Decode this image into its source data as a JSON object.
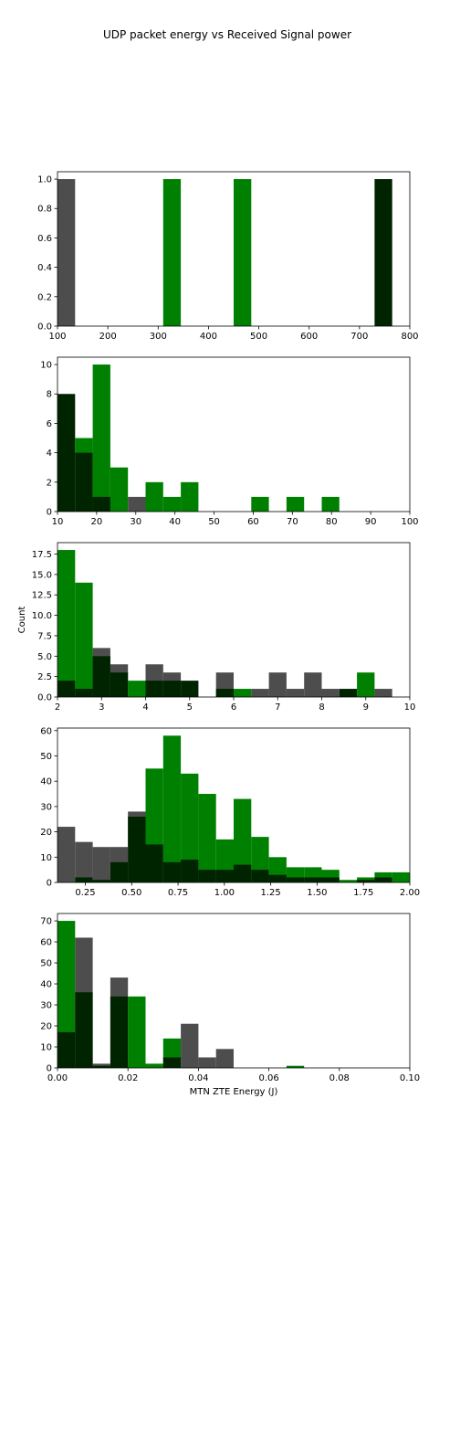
{
  "figure": {
    "title": "UDP packet energy vs Received Signal power"
  },
  "colors": {
    "gray": "#4d4d4d",
    "green": "#008000",
    "dark": "#002400"
  },
  "chart_data": [
    {
      "type": "bar",
      "xlim": [
        100,
        800
      ],
      "ylim": [
        0,
        1.05
      ],
      "xticks": [
        100,
        200,
        300,
        400,
        500,
        600,
        700,
        800
      ],
      "yticks": [
        0.0,
        0.2,
        0.4,
        0.6,
        0.8,
        1.0
      ],
      "xtick_labels": [
        "100",
        "200",
        "300",
        "400",
        "500",
        "600",
        "700",
        "800"
      ],
      "ytick_labels": [
        "0.0",
        "0.2",
        "0.4",
        "0.6",
        "0.8",
        "1.0"
      ],
      "xlabel": "",
      "ylabel": "",
      "bars": [
        {
          "x0": 100,
          "x1": 135,
          "value": 1,
          "color": "gray"
        },
        {
          "x0": 310,
          "x1": 345,
          "value": 1,
          "color": "green"
        },
        {
          "x0": 450,
          "x1": 485,
          "value": 1,
          "color": "green"
        },
        {
          "x0": 730,
          "x1": 765,
          "value": 1,
          "color": "dark"
        }
      ]
    },
    {
      "type": "bar",
      "xlim": [
        10,
        100
      ],
      "ylim": [
        0,
        10.5
      ],
      "xticks": [
        10,
        20,
        30,
        40,
        50,
        60,
        70,
        80,
        90,
        100
      ],
      "yticks": [
        0,
        2,
        4,
        6,
        8,
        10
      ],
      "xtick_labels": [
        "10",
        "20",
        "30",
        "40",
        "50",
        "60",
        "70",
        "80",
        "90",
        "100"
      ],
      "ytick_labels": [
        "0",
        "2",
        "4",
        "6",
        "8",
        "10"
      ],
      "xlabel": "",
      "ylabel": "",
      "bars": [
        {
          "x0": 10,
          "x1": 14.5,
          "value": 8,
          "color": "dark"
        },
        {
          "x0": 14.5,
          "x1": 19,
          "value": 5,
          "color": "green"
        },
        {
          "x0": 14.5,
          "x1": 19,
          "value": 4,
          "color": "dark"
        },
        {
          "x0": 19,
          "x1": 23.5,
          "value": 10,
          "color": "green"
        },
        {
          "x0": 19,
          "x1": 23.5,
          "value": 1,
          "color": "dark"
        },
        {
          "x0": 23.5,
          "x1": 28,
          "value": 3,
          "color": "green"
        },
        {
          "x0": 28,
          "x1": 32.5,
          "value": 1,
          "color": "gray"
        },
        {
          "x0": 32.5,
          "x1": 37,
          "value": 2,
          "color": "green"
        },
        {
          "x0": 37,
          "x1": 41.5,
          "value": 1,
          "color": "green"
        },
        {
          "x0": 41.5,
          "x1": 46,
          "value": 2,
          "color": "green"
        },
        {
          "x0": 59.5,
          "x1": 64,
          "value": 1,
          "color": "green"
        },
        {
          "x0": 68.5,
          "x1": 73,
          "value": 1,
          "color": "green"
        },
        {
          "x0": 77.5,
          "x1": 82,
          "value": 1,
          "color": "green"
        }
      ]
    },
    {
      "type": "bar",
      "xlim": [
        2,
        10
      ],
      "ylim": [
        0,
        18.9
      ],
      "xticks": [
        2,
        3,
        4,
        5,
        6,
        7,
        8,
        9,
        10
      ],
      "yticks": [
        0,
        2.5,
        5.0,
        7.5,
        10.0,
        12.5,
        15.0,
        17.5
      ],
      "xtick_labels": [
        "2",
        "3",
        "4",
        "5",
        "6",
        "7",
        "8",
        "9",
        "10"
      ],
      "ytick_labels": [
        "0.0",
        "2.5",
        "5.0",
        "7.5",
        "10.0",
        "12.5",
        "15.0",
        "17.5"
      ],
      "xlabel": "",
      "ylabel": "Count",
      "bars": [
        {
          "x0": 2.0,
          "x1": 2.4,
          "value": 18,
          "color": "green"
        },
        {
          "x0": 2.0,
          "x1": 2.4,
          "value": 2,
          "color": "dark"
        },
        {
          "x0": 2.4,
          "x1": 2.8,
          "value": 14,
          "color": "green"
        },
        {
          "x0": 2.4,
          "x1": 2.8,
          "value": 1,
          "color": "dark"
        },
        {
          "x0": 2.8,
          "x1": 3.2,
          "value": 6,
          "color": "gray"
        },
        {
          "x0": 2.8,
          "x1": 3.2,
          "value": 5,
          "color": "dark"
        },
        {
          "x0": 3.2,
          "x1": 3.6,
          "value": 4,
          "color": "gray"
        },
        {
          "x0": 3.2,
          "x1": 3.6,
          "value": 3,
          "color": "dark"
        },
        {
          "x0": 3.6,
          "x1": 4.0,
          "value": 2,
          "color": "green"
        },
        {
          "x0": 4.0,
          "x1": 4.4,
          "value": 4,
          "color": "gray"
        },
        {
          "x0": 4.0,
          "x1": 4.4,
          "value": 2,
          "color": "dark"
        },
        {
          "x0": 4.4,
          "x1": 4.8,
          "value": 3,
          "color": "gray"
        },
        {
          "x0": 4.4,
          "x1": 4.8,
          "value": 2,
          "color": "dark"
        },
        {
          "x0": 4.8,
          "x1": 5.2,
          "value": 2,
          "color": "dark"
        },
        {
          "x0": 5.6,
          "x1": 6.0,
          "value": 3,
          "color": "gray"
        },
        {
          "x0": 5.6,
          "x1": 6.0,
          "value": 1,
          "color": "dark"
        },
        {
          "x0": 6.0,
          "x1": 6.4,
          "value": 1,
          "color": "green"
        },
        {
          "x0": 6.4,
          "x1": 6.8,
          "value": 1,
          "color": "gray"
        },
        {
          "x0": 6.8,
          "x1": 7.2,
          "value": 3,
          "color": "gray"
        },
        {
          "x0": 7.2,
          "x1": 7.6,
          "value": 1,
          "color": "gray"
        },
        {
          "x0": 7.6,
          "x1": 8.0,
          "value": 3,
          "color": "gray"
        },
        {
          "x0": 8.0,
          "x1": 8.4,
          "value": 1,
          "color": "gray"
        },
        {
          "x0": 8.4,
          "x1": 8.8,
          "value": 1,
          "color": "dark"
        },
        {
          "x0": 8.8,
          "x1": 9.2,
          "value": 3,
          "color": "green"
        },
        {
          "x0": 9.2,
          "x1": 9.6,
          "value": 1,
          "color": "gray"
        }
      ]
    },
    {
      "type": "bar",
      "xlim": [
        0.1,
        2.0
      ],
      "ylim": [
        0,
        61
      ],
      "xticks": [
        0.25,
        0.5,
        0.75,
        1.0,
        1.25,
        1.5,
        1.75,
        2.0
      ],
      "yticks": [
        0,
        10,
        20,
        30,
        40,
        50,
        60
      ],
      "xtick_labels": [
        "0.25",
        "0.50",
        "0.75",
        "1.00",
        "1.25",
        "1.50",
        "1.75",
        "2.00"
      ],
      "ytick_labels": [
        "0",
        "10",
        "20",
        "30",
        "40",
        "50",
        "60"
      ],
      "xlabel": "",
      "ylabel": "",
      "bars": [
        {
          "x0": 0.1,
          "x1": 0.195,
          "value": 22,
          "color": "gray"
        },
        {
          "x0": 0.195,
          "x1": 0.29,
          "value": 16,
          "color": "gray"
        },
        {
          "x0": 0.195,
          "x1": 0.29,
          "value": 2,
          "color": "dark"
        },
        {
          "x0": 0.29,
          "x1": 0.385,
          "value": 14,
          "color": "gray"
        },
        {
          "x0": 0.29,
          "x1": 0.385,
          "value": 1,
          "color": "dark"
        },
        {
          "x0": 0.385,
          "x1": 0.48,
          "value": 14,
          "color": "gray"
        },
        {
          "x0": 0.385,
          "x1": 0.48,
          "value": 8,
          "color": "dark"
        },
        {
          "x0": 0.48,
          "x1": 0.575,
          "value": 28,
          "color": "gray"
        },
        {
          "x0": 0.48,
          "x1": 0.575,
          "value": 26,
          "color": "dark"
        },
        {
          "x0": 0.575,
          "x1": 0.67,
          "value": 45,
          "color": "green"
        },
        {
          "x0": 0.575,
          "x1": 0.67,
          "value": 15,
          "color": "dark"
        },
        {
          "x0": 0.67,
          "x1": 0.765,
          "value": 58,
          "color": "green"
        },
        {
          "x0": 0.67,
          "x1": 0.765,
          "value": 8,
          "color": "dark"
        },
        {
          "x0": 0.765,
          "x1": 0.86,
          "value": 43,
          "color": "green"
        },
        {
          "x0": 0.765,
          "x1": 0.86,
          "value": 9,
          "color": "dark"
        },
        {
          "x0": 0.86,
          "x1": 0.955,
          "value": 35,
          "color": "green"
        },
        {
          "x0": 0.86,
          "x1": 0.955,
          "value": 5,
          "color": "dark"
        },
        {
          "x0": 0.955,
          "x1": 1.05,
          "value": 17,
          "color": "green"
        },
        {
          "x0": 0.955,
          "x1": 1.05,
          "value": 5,
          "color": "dark"
        },
        {
          "x0": 1.05,
          "x1": 1.145,
          "value": 33,
          "color": "green"
        },
        {
          "x0": 1.05,
          "x1": 1.145,
          "value": 7,
          "color": "dark"
        },
        {
          "x0": 1.145,
          "x1": 1.24,
          "value": 18,
          "color": "green"
        },
        {
          "x0": 1.145,
          "x1": 1.24,
          "value": 5,
          "color": "dark"
        },
        {
          "x0": 1.24,
          "x1": 1.335,
          "value": 10,
          "color": "green"
        },
        {
          "x0": 1.24,
          "x1": 1.335,
          "value": 3,
          "color": "dark"
        },
        {
          "x0": 1.335,
          "x1": 1.43,
          "value": 6,
          "color": "green"
        },
        {
          "x0": 1.335,
          "x1": 1.43,
          "value": 2,
          "color": "dark"
        },
        {
          "x0": 1.43,
          "x1": 1.525,
          "value": 6,
          "color": "green"
        },
        {
          "x0": 1.43,
          "x1": 1.525,
          "value": 2,
          "color": "dark"
        },
        {
          "x0": 1.525,
          "x1": 1.62,
          "value": 5,
          "color": "green"
        },
        {
          "x0": 1.525,
          "x1": 1.62,
          "value": 2,
          "color": "dark"
        },
        {
          "x0": 1.62,
          "x1": 1.715,
          "value": 1,
          "color": "green"
        },
        {
          "x0": 1.715,
          "x1": 1.81,
          "value": 2,
          "color": "green"
        },
        {
          "x0": 1.715,
          "x1": 1.81,
          "value": 1,
          "color": "dark"
        },
        {
          "x0": 1.81,
          "x1": 1.905,
          "value": 4,
          "color": "green"
        },
        {
          "x0": 1.81,
          "x1": 1.905,
          "value": 2,
          "color": "dark"
        },
        {
          "x0": 1.905,
          "x1": 2.0,
          "value": 4,
          "color": "green"
        }
      ]
    },
    {
      "type": "bar",
      "xlim": [
        0.0,
        0.1
      ],
      "ylim": [
        0,
        73.5
      ],
      "xticks": [
        0.0,
        0.02,
        0.04,
        0.06,
        0.08,
        0.1
      ],
      "yticks": [
        0,
        10,
        20,
        30,
        40,
        50,
        60,
        70
      ],
      "xtick_labels": [
        "0.00",
        "0.02",
        "0.04",
        "0.06",
        "0.08",
        "0.10"
      ],
      "ytick_labels": [
        "0",
        "10",
        "20",
        "30",
        "40",
        "50",
        "60",
        "70"
      ],
      "xlabel": "MTN ZTE Energy (J)",
      "ylabel": "",
      "bars": [
        {
          "x0": 0.0,
          "x1": 0.005,
          "value": 70,
          "color": "green"
        },
        {
          "x0": 0.0,
          "x1": 0.005,
          "value": 17,
          "color": "dark"
        },
        {
          "x0": 0.005,
          "x1": 0.01,
          "value": 62,
          "color": "gray"
        },
        {
          "x0": 0.005,
          "x1": 0.01,
          "value": 36,
          "color": "dark"
        },
        {
          "x0": 0.01,
          "x1": 0.015,
          "value": 2,
          "color": "gray"
        },
        {
          "x0": 0.01,
          "x1": 0.015,
          "value": 1,
          "color": "dark"
        },
        {
          "x0": 0.015,
          "x1": 0.02,
          "value": 43,
          "color": "gray"
        },
        {
          "x0": 0.015,
          "x1": 0.02,
          "value": 34,
          "color": "dark"
        },
        {
          "x0": 0.02,
          "x1": 0.025,
          "value": 34,
          "color": "green"
        },
        {
          "x0": 0.025,
          "x1": 0.03,
          "value": 2,
          "color": "green"
        },
        {
          "x0": 0.03,
          "x1": 0.035,
          "value": 14,
          "color": "green"
        },
        {
          "x0": 0.03,
          "x1": 0.035,
          "value": 5,
          "color": "dark"
        },
        {
          "x0": 0.035,
          "x1": 0.04,
          "value": 21,
          "color": "gray"
        },
        {
          "x0": 0.04,
          "x1": 0.045,
          "value": 5,
          "color": "gray"
        },
        {
          "x0": 0.045,
          "x1": 0.05,
          "value": 9,
          "color": "gray"
        },
        {
          "x0": 0.065,
          "x1": 0.07,
          "value": 1,
          "color": "green"
        }
      ]
    }
  ]
}
